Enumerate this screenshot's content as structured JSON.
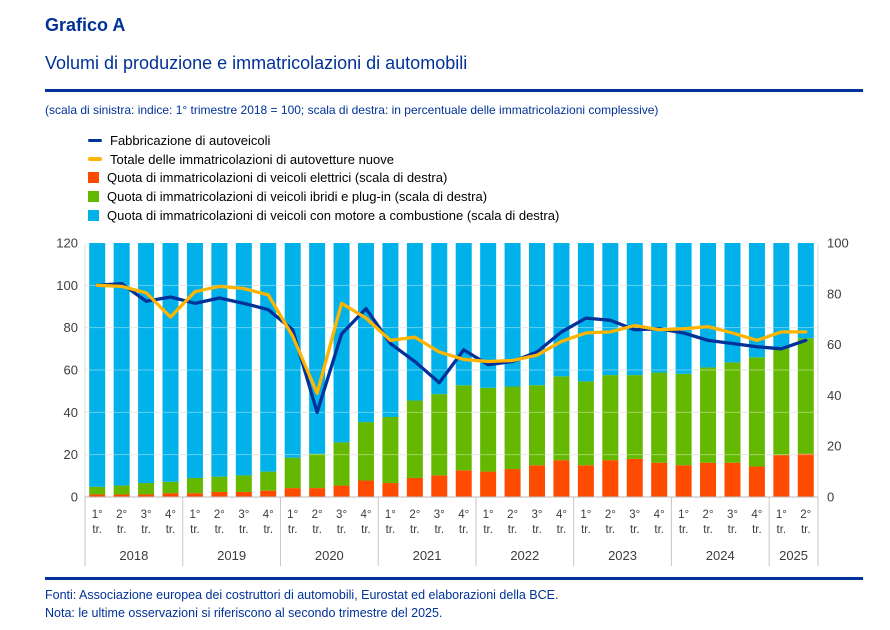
{
  "header": {
    "label": "Grafico A",
    "title": "Volumi di produzione e immatricolazioni di automobili",
    "scale_note": "(scala di sinistra: indice: 1° trimestre 2018 = 100; scala di destra: in percentuale delle immatricolazioni complessive)"
  },
  "colors": {
    "brand_blue": "#003299",
    "line_production": "#003299",
    "line_registrations": "#FFB400",
    "bar_electric": "#FF4B00",
    "bar_hybrid": "#65B800",
    "bar_combustion": "#00B1EA",
    "grid": "#dcdcdc",
    "grid_over_bars": "rgba(255,255,255,0.4)",
    "axis_text": "#3d3d3d",
    "separator": "#c6c6c6",
    "axis_line": "#b8b8b8"
  },
  "legend": {
    "items": [
      {
        "label": "Fabbricazione di autoveicoli",
        "marker": "line",
        "color": "#003299"
      },
      {
        "label": "Totale delle immatricolazioni di autovetture nuove",
        "marker": "line",
        "color": "#FFB400"
      },
      {
        "label": "Quota di immatricolazioni di veicoli elettrici (scala di destra)",
        "marker": "square",
        "color": "#FF4B00"
      },
      {
        "label": "Quota di immatricolazioni di veicoli ibridi e plug-in (scala di destra)",
        "marker": "square",
        "color": "#65B800"
      },
      {
        "label": "Quota di immatricolazioni di veicoli con motore a combustione (scala di destra)",
        "marker": "square",
        "color": "#00B1EA"
      }
    ]
  },
  "chart_data": {
    "type": "combo_stacked_bar_lines",
    "x": [
      "1° tr. 2018",
      "2° tr. 2018",
      "3° tr. 2018",
      "4° tr. 2018",
      "1° tr. 2019",
      "2° tr. 2019",
      "3° tr. 2019",
      "4° tr. 2019",
      "1° tr. 2020",
      "2° tr. 2020",
      "3° tr. 2020",
      "4° tr. 2020",
      "1° tr. 2021",
      "2° tr. 2021",
      "3° tr. 2021",
      "4° tr. 2021",
      "1° tr. 2022",
      "2° tr. 2022",
      "3° tr. 2022",
      "4° tr. 2022",
      "1° tr. 2023",
      "2° tr. 2023",
      "3° tr. 2023",
      "4° tr. 2023",
      "1° tr. 2024",
      "2° tr. 2024",
      "3° tr. 2024",
      "4° tr. 2024",
      "1° tr. 2025",
      "2° tr. 2025"
    ],
    "left_axis": {
      "min": 0,
      "max": 120,
      "step": 20,
      "ticks": [
        0,
        20,
        40,
        60,
        80,
        100,
        120
      ],
      "description": "indice: 1° trimestre 2018 = 100"
    },
    "right_axis": {
      "min": 0,
      "max": 100,
      "step": 20,
      "ticks": [
        0,
        20,
        40,
        60,
        80,
        100
      ],
      "description": "in percentuale delle immatricolazioni complessive"
    },
    "grid": "horizontal",
    "legend_position": "top-left",
    "bar_series": [
      {
        "name": "Quota di immatricolazioni di veicoli elettrici (scala di destra)",
        "axis": "right",
        "color": "#FF4B00",
        "values": [
          1,
          1,
          1,
          1.5,
          1.5,
          2,
          2,
          2.5,
          3.5,
          3.5,
          4.5,
          6.5,
          5.5,
          7.5,
          8.5,
          10.5,
          10,
          11,
          12.5,
          14.5,
          12.5,
          14.5,
          15,
          13.5,
          12.5,
          13.5,
          13.5,
          12,
          16.5,
          17
        ]
      },
      {
        "name": "Quota di immatricolazioni di veicoli ibridi e plug-in (scala di destra)",
        "axis": "right",
        "color": "#65B800",
        "values": [
          3,
          3.5,
          4.5,
          4.5,
          6,
          6,
          6.5,
          7.5,
          12,
          13.5,
          17,
          23,
          26,
          30.5,
          32,
          33.5,
          33,
          32.5,
          31.5,
          33,
          33,
          33.5,
          33,
          35.5,
          36,
          37.5,
          39.5,
          43,
          42,
          45.5
        ]
      },
      {
        "name": "Quota di immatricolazioni di veicoli con motore a combustione (scala di destra)",
        "axis": "right",
        "color": "#00B1EA",
        "values": [
          96,
          95.5,
          94.5,
          94,
          92.5,
          92,
          91.5,
          90,
          84.5,
          83,
          78.5,
          70.5,
          68.5,
          62,
          59.5,
          56,
          57,
          56.5,
          56,
          52.5,
          54.5,
          52,
          52,
          51,
          51.5,
          49,
          47,
          45,
          41.5,
          37.5
        ]
      }
    ],
    "line_series": [
      {
        "name": "Fabbricazione di autoveicoli",
        "axis": "left",
        "color": "#003299",
        "values": [
          100,
          100.8,
          92.5,
          94.5,
          91.5,
          94,
          91.5,
          88.5,
          79,
          40,
          77,
          89,
          72.5,
          64,
          54,
          69.5,
          62.5,
          64,
          68.5,
          78,
          84.5,
          83.5,
          79,
          79.5,
          77.5,
          74,
          72.5,
          71,
          70,
          74
        ]
      },
      {
        "name": "Totale delle immatricolazioni di autovetture nuove",
        "axis": "left",
        "color": "#FFB400",
        "values": [
          100,
          99.5,
          96.5,
          85,
          97,
          99.5,
          98.5,
          95.5,
          76,
          49,
          91.5,
          84.5,
          74,
          75.5,
          68.5,
          65,
          64,
          64.5,
          67,
          73.5,
          77.5,
          78,
          81,
          79,
          79.5,
          80.5,
          77.5,
          74,
          78,
          78
        ]
      }
    ]
  },
  "x_axis": {
    "quarter_labels": [
      "1°",
      "2°",
      "3°",
      "4°"
    ],
    "quarter_suffix": "tr.",
    "year_groups": [
      {
        "year": "2018",
        "quarters": 4
      },
      {
        "year": "2019",
        "quarters": 4
      },
      {
        "year": "2020",
        "quarters": 4
      },
      {
        "year": "2021",
        "quarters": 4
      },
      {
        "year": "2022",
        "quarters": 4
      },
      {
        "year": "2023",
        "quarters": 4
      },
      {
        "year": "2024",
        "quarters": 4
      },
      {
        "year": "2025",
        "quarters": 2
      }
    ]
  },
  "footer": {
    "fonti": "Fonti: Associazione europea dei costruttori di automobili, Eurostat ed elaborazioni della BCE.",
    "nota": "Nota: le ultime osservazioni si riferiscono al secondo trimestre del 2025."
  }
}
